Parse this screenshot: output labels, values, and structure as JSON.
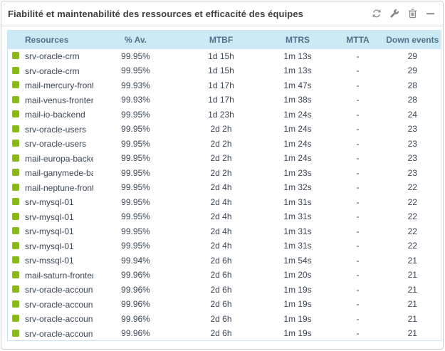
{
  "widget": {
    "title": "Fiabilité et maintenabilité des ressources et efficacité des équipes",
    "toolbar": {
      "refresh": "refresh",
      "configure": "configure",
      "delete": "delete",
      "collapse": "collapse"
    }
  },
  "colors": {
    "status_ok": "#88b917",
    "header_bg": "#cce9f6",
    "header_text": "#4f7389",
    "row_text": "#3a4654",
    "icon_gray": "#8c8a85"
  },
  "table": {
    "columns": {
      "resource": "Resources",
      "availability": "% Av.",
      "mtbf": "MTBF",
      "mtrs": "MTRS",
      "mtta": "MTTA",
      "down_events": "Down events"
    },
    "rows": [
      {
        "status": "ok",
        "resource": "srv-oracle-crm",
        "availability": "99.95%",
        "mtbf": "1d 15h",
        "mtrs": "1m 13s",
        "mtta": "-",
        "down_events": "29"
      },
      {
        "status": "ok",
        "resource": "srv-oracle-crm",
        "availability": "99.95%",
        "mtbf": "1d 15h",
        "mtrs": "1m 13s",
        "mtta": "-",
        "down_events": "29"
      },
      {
        "status": "ok",
        "resource": "mail-mercury-frontend",
        "availability": "99.93%",
        "mtbf": "1d 17h",
        "mtrs": "1m 47s",
        "mtta": "-",
        "down_events": "28"
      },
      {
        "status": "ok",
        "resource": "mail-venus-frontend",
        "availability": "99.93%",
        "mtbf": "1d 17h",
        "mtrs": "1m 38s",
        "mtta": "-",
        "down_events": "28"
      },
      {
        "status": "ok",
        "resource": "mail-io-backend",
        "availability": "99.95%",
        "mtbf": "1d 23h",
        "mtrs": "1m 24s",
        "mtta": "-",
        "down_events": "24"
      },
      {
        "status": "ok",
        "resource": "srv-oracle-users",
        "availability": "99.95%",
        "mtbf": "2d 2h",
        "mtrs": "1m 24s",
        "mtta": "-",
        "down_events": "23"
      },
      {
        "status": "ok",
        "resource": "srv-oracle-users",
        "availability": "99.95%",
        "mtbf": "2d 2h",
        "mtrs": "1m 24s",
        "mtta": "-",
        "down_events": "23"
      },
      {
        "status": "ok",
        "resource": "mail-europa-backend",
        "availability": "99.95%",
        "mtbf": "2d 2h",
        "mtrs": "1m 24s",
        "mtta": "-",
        "down_events": "23"
      },
      {
        "status": "ok",
        "resource": "mail-ganymede-backend",
        "availability": "99.95%",
        "mtbf": "2d 2h",
        "mtrs": "1m 23s",
        "mtta": "-",
        "down_events": "23"
      },
      {
        "status": "ok",
        "resource": "mail-neptune-frontend",
        "availability": "99.95%",
        "mtbf": "2d 4h",
        "mtrs": "1m 32s",
        "mtta": "-",
        "down_events": "22"
      },
      {
        "status": "ok",
        "resource": "srv-mysql-01",
        "availability": "99.95%",
        "mtbf": "2d 4h",
        "mtrs": "1m 31s",
        "mtta": "-",
        "down_events": "22"
      },
      {
        "status": "ok",
        "resource": "srv-mysql-01",
        "availability": "99.95%",
        "mtbf": "2d 4h",
        "mtrs": "1m 31s",
        "mtta": "-",
        "down_events": "22"
      },
      {
        "status": "ok",
        "resource": "srv-mysql-01",
        "availability": "99.95%",
        "mtbf": "2d 4h",
        "mtrs": "1m 31s",
        "mtta": "-",
        "down_events": "22"
      },
      {
        "status": "ok",
        "resource": "srv-mysql-01",
        "availability": "99.95%",
        "mtbf": "2d 4h",
        "mtrs": "1m 31s",
        "mtta": "-",
        "down_events": "22"
      },
      {
        "status": "ok",
        "resource": "srv-mssql-01",
        "availability": "99.94%",
        "mtbf": "2d 6h",
        "mtrs": "1m 54s",
        "mtta": "-",
        "down_events": "21"
      },
      {
        "status": "ok",
        "resource": "mail-saturn-frontend",
        "availability": "99.96%",
        "mtbf": "2d 6h",
        "mtrs": "1m 20s",
        "mtta": "-",
        "down_events": "21"
      },
      {
        "status": "ok",
        "resource": "srv-oracle-accounting",
        "availability": "99.96%",
        "mtbf": "2d 6h",
        "mtrs": "1m 19s",
        "mtta": "-",
        "down_events": "21"
      },
      {
        "status": "ok",
        "resource": "srv-oracle-accounting",
        "availability": "99.96%",
        "mtbf": "2d 6h",
        "mtrs": "1m 19s",
        "mtta": "-",
        "down_events": "21"
      },
      {
        "status": "ok",
        "resource": "srv-oracle-accounting",
        "availability": "99.96%",
        "mtbf": "2d 6h",
        "mtrs": "1m 19s",
        "mtta": "-",
        "down_events": "21"
      },
      {
        "status": "ok",
        "resource": "srv-oracle-accounting",
        "availability": "99.96%",
        "mtbf": "2d 6h",
        "mtrs": "1m 19s",
        "mtta": "-",
        "down_events": "21"
      }
    ]
  }
}
